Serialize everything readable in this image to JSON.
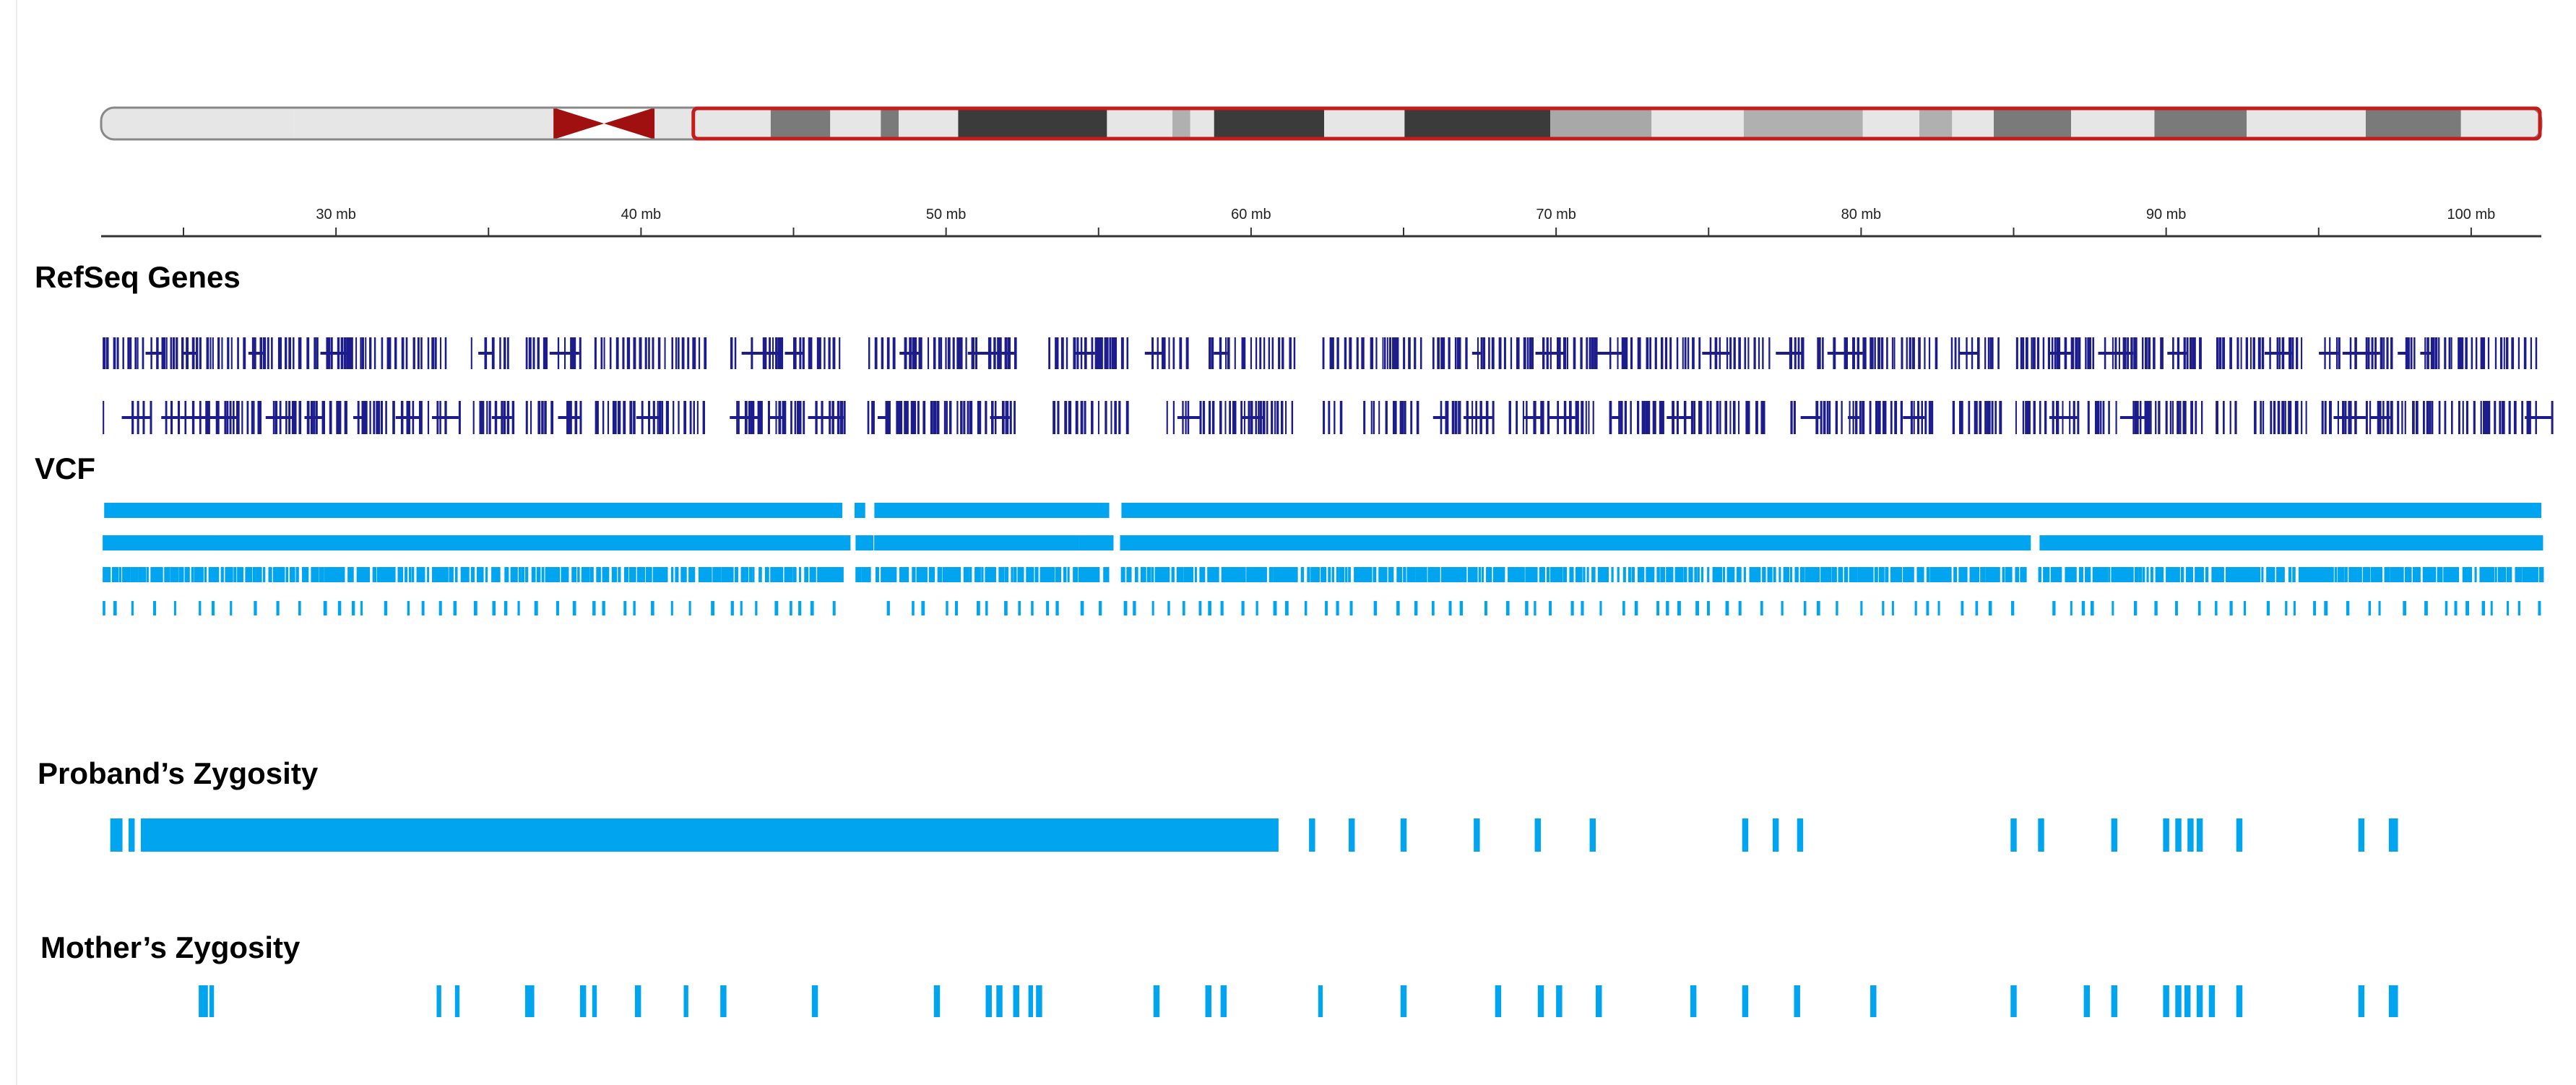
{
  "colors": {
    "gene": "#1c1c8c",
    "vcf": "#00a4ef",
    "ideogram_outline": "#888888",
    "ideogram_highlight": "#c61b1b",
    "centromere": "#a01010",
    "axis": "#333333"
  },
  "ideogram": {
    "range_mb": [
      20,
      102
    ],
    "highlight_mb": [
      39.9,
      102
    ],
    "bands": [
      [
        20,
        26.5,
        "#e6e6e6"
      ],
      [
        26.5,
        33,
        "#e6e6e6"
      ],
      [
        33,
        35.2,
        "#e6e6e6"
      ],
      [
        35.2,
        38.6,
        "centromere"
      ],
      [
        38.6,
        39.9,
        "#e6e6e6"
      ],
      [
        39.9,
        42.5,
        "#e6e6e6"
      ],
      [
        42.5,
        44.5,
        "#7a7a7a"
      ],
      [
        44.5,
        46.2,
        "#e6e6e6"
      ],
      [
        46.2,
        46.8,
        "#7a7a7a"
      ],
      [
        46.8,
        48.8,
        "#e6e6e6"
      ],
      [
        48.8,
        53.8,
        "#3b3b3b"
      ],
      [
        53.8,
        56,
        "#e6e6e6"
      ],
      [
        56,
        56.6,
        "#b0b0b0"
      ],
      [
        56.6,
        57.4,
        "#e6e6e6"
      ],
      [
        57.4,
        61.1,
        "#3b3b3b"
      ],
      [
        61.1,
        63.8,
        "#e6e6e6"
      ],
      [
        63.8,
        68.7,
        "#3b3b3b"
      ],
      [
        68.7,
        72.1,
        "#a8a8a8"
      ],
      [
        72.1,
        75.2,
        "#e6e6e6"
      ],
      [
        75.2,
        79.2,
        "#b0b0b0"
      ],
      [
        79.2,
        81.1,
        "#e6e6e6"
      ],
      [
        81.1,
        82.2,
        "#b0b0b0"
      ],
      [
        82.2,
        83.6,
        "#e6e6e6"
      ],
      [
        83.6,
        86.2,
        "#7a7a7a"
      ],
      [
        86.2,
        89.0,
        "#e6e6e6"
      ],
      [
        89.0,
        92.1,
        "#7a7a7a"
      ],
      [
        92.1,
        96.1,
        "#e6e6e6"
      ],
      [
        96.1,
        99.3,
        "#7a7a7a"
      ],
      [
        99.3,
        102,
        "#e6e6e6"
      ]
    ]
  },
  "axis": {
    "range_mb": [
      22.3,
      102.3
    ],
    "ticks": [
      {
        "mb": 25,
        "label": ""
      },
      {
        "mb": 30,
        "label": "30 mb"
      },
      {
        "mb": 35,
        "label": ""
      },
      {
        "mb": 40,
        "label": "40 mb"
      },
      {
        "mb": 45,
        "label": ""
      },
      {
        "mb": 50,
        "label": "50 mb"
      },
      {
        "mb": 55,
        "label": ""
      },
      {
        "mb": 60,
        "label": "60 mb"
      },
      {
        "mb": 65,
        "label": ""
      },
      {
        "mb": 70,
        "label": "70 mb"
      },
      {
        "mb": 75,
        "label": ""
      },
      {
        "mb": 80,
        "label": "80 mb"
      },
      {
        "mb": 85,
        "label": ""
      },
      {
        "mb": 90,
        "label": "90 mb"
      },
      {
        "mb": 95,
        "label": ""
      },
      {
        "mb": 100,
        "label": "100 mb"
      }
    ]
  },
  "tracks": {
    "refseq": {
      "label": "RefSeq Genes",
      "rows": 2,
      "gaps_mb": [
        [
          33.6,
          34.3
        ],
        [
          35.8,
          36.2
        ],
        [
          38.0,
          38.4
        ],
        [
          42.2,
          42.8
        ],
        [
          46.6,
          47.4
        ],
        [
          52.4,
          53.3
        ],
        [
          56.0,
          56.4
        ],
        [
          58.0,
          58.4
        ],
        [
          61.4,
          62.3
        ],
        [
          65.6,
          65.9
        ],
        [
          71.4,
          71.7
        ],
        [
          78.1,
          78.5
        ],
        [
          82.5,
          82.9
        ],
        [
          84.6,
          85.0
        ],
        [
          91.3,
          91.6
        ],
        [
          94.6,
          95.0
        ],
        [
          96.2,
          96.5
        ]
      ]
    },
    "vcf": {
      "label": "VCF",
      "rows": 4,
      "gaps_mb": [
        [
          46.6,
          47.0
        ],
        [
          47.4,
          47.6
        ],
        [
          55.4,
          55.7
        ],
        [
          85.3,
          85.8
        ]
      ]
    },
    "proband": {
      "label": "Proband’s Zygosity",
      "features_mb": [
        [
          22.6,
          23.0
        ],
        [
          23.2,
          23.4
        ],
        [
          23.6,
          60.9
        ],
        [
          61.9,
          62.1
        ],
        [
          63.2,
          63.4
        ],
        [
          64.9,
          65.1
        ],
        [
          67.3,
          67.5
        ],
        [
          69.3,
          69.5
        ],
        [
          71.1,
          71.3
        ],
        [
          76.1,
          76.3
        ],
        [
          77.1,
          77.3
        ],
        [
          77.9,
          78.1
        ],
        [
          84.9,
          85.1
        ],
        [
          85.8,
          86.0
        ],
        [
          88.2,
          88.4
        ],
        [
          89.9,
          90.1
        ],
        [
          90.3,
          90.5
        ],
        [
          90.7,
          90.9
        ],
        [
          91.0,
          91.2
        ],
        [
          92.3,
          92.5
        ],
        [
          96.3,
          96.5
        ],
        [
          97.3,
          97.6
        ]
      ]
    },
    "mother": {
      "label": "Mother’s Zygosity",
      "features_mb": [
        [
          25.5,
          25.8
        ],
        [
          25.85,
          26.0
        ],
        [
          33.3,
          33.45
        ],
        [
          33.9,
          34.05
        ],
        [
          36.2,
          36.5
        ],
        [
          38.0,
          38.2
        ],
        [
          38.4,
          38.55
        ],
        [
          39.8,
          40.0
        ],
        [
          41.4,
          41.55
        ],
        [
          42.6,
          42.8
        ],
        [
          45.6,
          45.8
        ],
        [
          49.6,
          49.8
        ],
        [
          51.3,
          51.5
        ],
        [
          51.65,
          51.85
        ],
        [
          52.2,
          52.4
        ],
        [
          52.7,
          52.85
        ],
        [
          52.95,
          53.15
        ],
        [
          56.8,
          57.0
        ],
        [
          58.5,
          58.7
        ],
        [
          59.0,
          59.2
        ],
        [
          62.2,
          62.35
        ],
        [
          64.9,
          65.1
        ],
        [
          68.0,
          68.2
        ],
        [
          69.4,
          69.6
        ],
        [
          70.0,
          70.2
        ],
        [
          71.3,
          71.5
        ],
        [
          74.4,
          74.6
        ],
        [
          76.1,
          76.3
        ],
        [
          77.8,
          78.0
        ],
        [
          80.3,
          80.5
        ],
        [
          84.9,
          85.1
        ],
        [
          87.3,
          87.5
        ],
        [
          88.2,
          88.4
        ],
        [
          89.9,
          90.1
        ],
        [
          90.3,
          90.5
        ],
        [
          90.6,
          90.8
        ],
        [
          91.0,
          91.2
        ],
        [
          91.4,
          91.6
        ],
        [
          92.3,
          92.5
        ],
        [
          96.3,
          96.5
        ],
        [
          97.3,
          97.6
        ]
      ]
    }
  }
}
